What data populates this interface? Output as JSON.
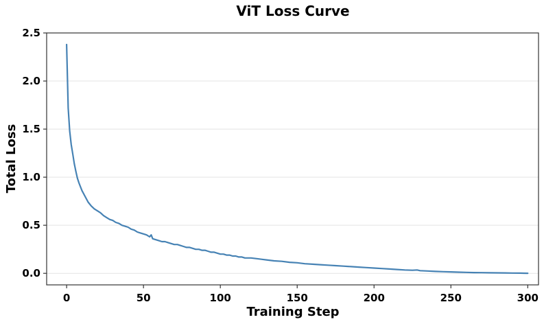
{
  "chart_data": {
    "type": "line",
    "title": "ViT Loss Curve",
    "xlabel": "Training Step",
    "ylabel": "Total Loss",
    "xlim": [
      -13,
      307
    ],
    "ylim": [
      -0.12,
      2.5
    ],
    "xticks": [
      0,
      50,
      100,
      150,
      200,
      250,
      300
    ],
    "xtick_labels": [
      "0",
      "50",
      "100",
      "150",
      "200",
      "250",
      "300"
    ],
    "yticks": [
      0.0,
      0.5,
      1.0,
      1.5,
      2.0,
      2.5
    ],
    "ytick_labels": [
      "0.0",
      "0.5",
      "1.0",
      "1.5",
      "2.0",
      "2.5"
    ],
    "grid": "horizontal",
    "series": [
      {
        "name": "Total Loss",
        "color": "#4682b4",
        "x": [
          0,
          1,
          2,
          3,
          4,
          5,
          6,
          7,
          8,
          9,
          10,
          12,
          14,
          16,
          18,
          20,
          22,
          24,
          26,
          28,
          30,
          32,
          34,
          36,
          38,
          40,
          42,
          44,
          46,
          48,
          50,
          52,
          54,
          55,
          56,
          58,
          60,
          62,
          64,
          66,
          68,
          70,
          72,
          74,
          76,
          78,
          80,
          82,
          84,
          86,
          88,
          90,
          92,
          94,
          96,
          98,
          100,
          102,
          104,
          106,
          108,
          110,
          112,
          114,
          116,
          118,
          120,
          125,
          130,
          135,
          140,
          145,
          150,
          155,
          160,
          165,
          170,
          175,
          180,
          185,
          190,
          195,
          200,
          205,
          210,
          215,
          220,
          225,
          228,
          230,
          235,
          240,
          245,
          250,
          255,
          260,
          265,
          270,
          275,
          280,
          285,
          290,
          295,
          300
        ],
        "y": [
          2.38,
          1.72,
          1.48,
          1.34,
          1.24,
          1.14,
          1.06,
          0.99,
          0.94,
          0.9,
          0.86,
          0.8,
          0.74,
          0.7,
          0.67,
          0.65,
          0.63,
          0.6,
          0.58,
          0.56,
          0.55,
          0.53,
          0.52,
          0.5,
          0.49,
          0.48,
          0.46,
          0.45,
          0.43,
          0.42,
          0.41,
          0.4,
          0.38,
          0.4,
          0.36,
          0.35,
          0.34,
          0.33,
          0.33,
          0.32,
          0.31,
          0.3,
          0.3,
          0.29,
          0.28,
          0.27,
          0.27,
          0.26,
          0.25,
          0.25,
          0.24,
          0.24,
          0.23,
          0.22,
          0.22,
          0.21,
          0.2,
          0.2,
          0.19,
          0.19,
          0.18,
          0.18,
          0.17,
          0.17,
          0.16,
          0.16,
          0.16,
          0.15,
          0.14,
          0.13,
          0.125,
          0.115,
          0.11,
          0.1,
          0.095,
          0.09,
          0.085,
          0.08,
          0.075,
          0.07,
          0.065,
          0.06,
          0.055,
          0.05,
          0.045,
          0.04,
          0.035,
          0.032,
          0.035,
          0.028,
          0.024,
          0.02,
          0.017,
          0.015,
          0.012,
          0.01,
          0.008,
          0.007,
          0.006,
          0.005,
          0.004,
          0.003,
          0.002,
          0.001
        ]
      }
    ]
  }
}
